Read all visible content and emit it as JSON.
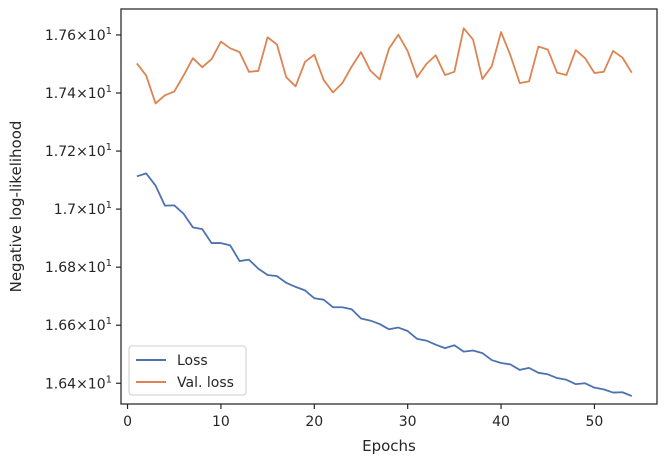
{
  "chart_data": {
    "type": "line",
    "xlabel": "Epochs",
    "ylabel": "Negative log-likelihood",
    "xlim": [
      -0.7,
      56.7
    ],
    "ylim": [
      16.3286,
      17.6894
    ],
    "grid": false,
    "legend_position": "lower-left",
    "x_ticks": [
      {
        "value": 0,
        "label": "0"
      },
      {
        "value": 10,
        "label": "10"
      },
      {
        "value": 20,
        "label": "20"
      },
      {
        "value": 30,
        "label": "30"
      },
      {
        "value": 40,
        "label": "40"
      },
      {
        "value": 50,
        "label": "50"
      }
    ],
    "y_ticks": [
      {
        "value": 16.4,
        "mantissa": "1.64",
        "base": "10",
        "exp": "1"
      },
      {
        "value": 16.6,
        "mantissa": "1.66",
        "base": "10",
        "exp": "1"
      },
      {
        "value": 16.8,
        "mantissa": "1.68",
        "base": "10",
        "exp": "1"
      },
      {
        "value": 17.0,
        "mantissa": "1.7",
        "base": "10",
        "exp": "1"
      },
      {
        "value": 17.2,
        "mantissa": "1.72",
        "base": "10",
        "exp": "1"
      },
      {
        "value": 17.4,
        "mantissa": "1.74",
        "base": "10",
        "exp": "1"
      },
      {
        "value": 17.6,
        "mantissa": "1.76",
        "base": "10",
        "exp": "1"
      }
    ],
    "x": [
      1,
      2,
      3,
      4,
      5,
      6,
      7,
      8,
      9,
      10,
      11,
      12,
      13,
      14,
      15,
      16,
      17,
      18,
      19,
      20,
      21,
      22,
      23,
      24,
      25,
      26,
      27,
      28,
      29,
      30,
      31,
      32,
      33,
      34,
      35,
      36,
      37,
      38,
      39,
      40,
      41,
      42,
      43,
      44,
      45,
      46,
      47,
      48,
      49,
      50,
      51,
      52,
      53,
      54
    ],
    "series": [
      {
        "name": "Loss",
        "color": "#4c72b0",
        "values": [
          17.113,
          17.123,
          17.081,
          17.012,
          17.013,
          16.984,
          16.937,
          16.931,
          16.883,
          16.883,
          16.875,
          16.821,
          16.826,
          16.795,
          16.773,
          16.769,
          16.746,
          16.732,
          16.72,
          16.693,
          16.688,
          16.662,
          16.662,
          16.655,
          16.623,
          16.616,
          16.604,
          16.586,
          16.592,
          16.58,
          16.553,
          16.547,
          16.533,
          16.521,
          16.531,
          16.509,
          16.513,
          16.504,
          16.48,
          16.47,
          16.465,
          16.446,
          16.453,
          16.436,
          16.431,
          16.418,
          16.412,
          16.397,
          16.4,
          16.385,
          16.379,
          16.368,
          16.369,
          16.356
        ]
      },
      {
        "name": "Val. loss",
        "color": "#dd8452",
        "values": [
          17.502,
          17.46,
          17.364,
          17.392,
          17.405,
          17.46,
          17.52,
          17.489,
          17.517,
          17.577,
          17.554,
          17.541,
          17.473,
          17.476,
          17.592,
          17.567,
          17.454,
          17.423,
          17.507,
          17.532,
          17.445,
          17.402,
          17.434,
          17.491,
          17.541,
          17.477,
          17.447,
          17.553,
          17.601,
          17.544,
          17.454,
          17.5,
          17.53,
          17.462,
          17.473,
          17.623,
          17.584,
          17.448,
          17.492,
          17.61,
          17.53,
          17.434,
          17.44,
          17.56,
          17.55,
          17.47,
          17.462,
          17.548,
          17.52,
          17.469,
          17.473,
          17.545,
          17.522,
          17.47
        ]
      }
    ]
  }
}
